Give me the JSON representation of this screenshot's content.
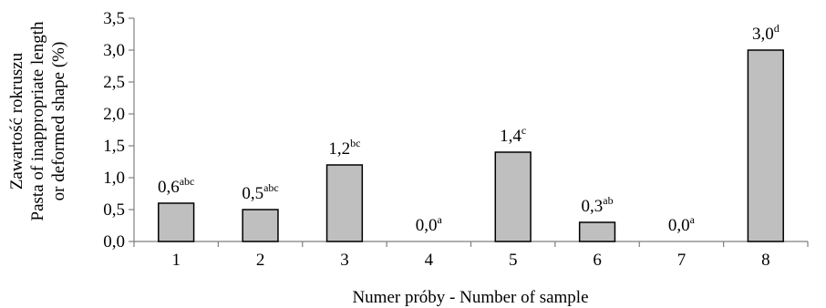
{
  "chart_data": {
    "type": "bar",
    "categories": [
      "1",
      "2",
      "3",
      "4",
      "5",
      "6",
      "7",
      "8"
    ],
    "values": [
      0.6,
      0.5,
      1.2,
      0.0,
      1.4,
      0.3,
      0.0,
      3.0
    ],
    "data_labels": [
      {
        "value": "0,6",
        "sup": "abc"
      },
      {
        "value": "0,5",
        "sup": "abc"
      },
      {
        "value": "1,2",
        "sup": "bc"
      },
      {
        "value": "0,0",
        "sup": "a"
      },
      {
        "value": "1,4",
        "sup": "c"
      },
      {
        "value": "0,3",
        "sup": "ab"
      },
      {
        "value": "0,0",
        "sup": "a"
      },
      {
        "value": "3,0",
        "sup": "d"
      }
    ],
    "y_ticks": [
      "0,0",
      "0,5",
      "1,0",
      "1,5",
      "2,0",
      "2,5",
      "3,0",
      "3,5"
    ],
    "ylim": [
      0,
      3.5
    ],
    "y_step": 0.5,
    "xlabel": "Numer próby - Number of sample",
    "ylabel_lines": [
      "Zawartość rokruszu",
      "Pasta of inappropriate length",
      "or deformed shape (%)"
    ],
    "bar_color": "#bfbfbf",
    "grid": false
  }
}
